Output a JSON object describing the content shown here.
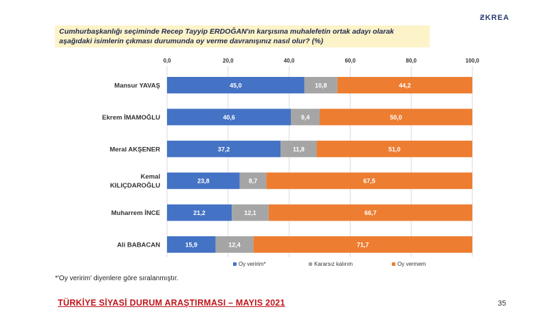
{
  "header": {
    "question": "Cumhurbaşkanlığı seçiminde Recep Tayyip ERDOĞAN'ın karşısına muhalefetin ortak adayı olarak aşağıdaki isimlerin çıkması durumunda oy verme davranışınız nasıl olur? (%)",
    "logo_text": "ƵKREA"
  },
  "chart_data": {
    "type": "bar",
    "orientation": "horizontal",
    "stacked": true,
    "title": "",
    "xlim": [
      0,
      100
    ],
    "xticks": [
      "0,0",
      "20,0",
      "40,0",
      "60,0",
      "80,0",
      "100,0"
    ],
    "xtick_values": [
      0,
      20,
      40,
      60,
      80,
      100
    ],
    "categories": [
      "Mansur YAVAŞ",
      "Ekrem İMAMOĞLU",
      "Meral AKŞENER",
      "Kemal KILIÇDAROĞLU",
      "Muharrem İNCE",
      "Ali BABACAN"
    ],
    "category_lines": [
      [
        "Mansur YAVAŞ"
      ],
      [
        "Ekrem İMAMOĞLU"
      ],
      [
        "Meral AKŞENER"
      ],
      [
        "Kemal",
        "KILIÇDAROĞLU"
      ],
      [
        "Muharrem İNCE"
      ],
      [
        "Ali BABACAN"
      ]
    ],
    "series": [
      {
        "name": "Oy veririm*",
        "color": "#4472c4",
        "values": [
          45.0,
          40.6,
          37.2,
          23.8,
          21.2,
          15.9
        ],
        "labels": [
          "45,0",
          "40,6",
          "37,2",
          "23,8",
          "21,2",
          "15,9"
        ]
      },
      {
        "name": "Kararsız kalırım",
        "color": "#a5a5a5",
        "values": [
          10.8,
          9.4,
          11.8,
          8.7,
          12.1,
          12.4
        ],
        "labels": [
          "10,8",
          "9,4",
          "11,8",
          "8,7",
          "12,1",
          "12,4"
        ]
      },
      {
        "name": "Oy vermem",
        "color": "#ed7d31",
        "values": [
          44.2,
          50.0,
          51.0,
          67.5,
          66.7,
          71.7
        ],
        "labels": [
          "44,2",
          "50,0",
          "51,0",
          "67,5",
          "66,7",
          "71,7"
        ]
      }
    ],
    "legend": "bottom"
  },
  "footnote": "*'Oy veririm' diyenlere göre sıralanmıştır.",
  "footer": {
    "title": "TÜRKİYE SİYASİ DURUM ARAŞTIRMASI – MAYIS 2021",
    "page_number": "35"
  }
}
